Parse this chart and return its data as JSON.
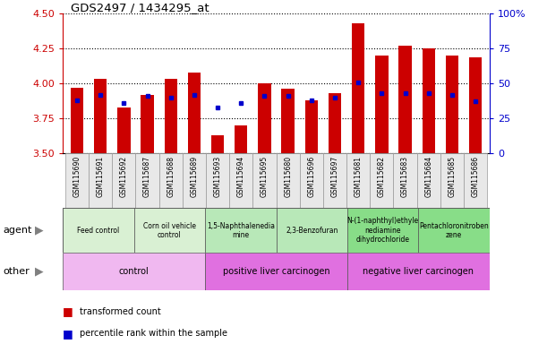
{
  "title": "GDS2497 / 1434295_at",
  "samples": [
    "GSM115690",
    "GSM115691",
    "GSM115692",
    "GSM115687",
    "GSM115688",
    "GSM115689",
    "GSM115693",
    "GSM115694",
    "GSM115695",
    "GSM115680",
    "GSM115696",
    "GSM115697",
    "GSM115681",
    "GSM115682",
    "GSM115683",
    "GSM115684",
    "GSM115685",
    "GSM115686"
  ],
  "red_values": [
    3.97,
    4.03,
    3.83,
    3.92,
    4.03,
    4.08,
    3.63,
    3.7,
    4.0,
    3.96,
    3.88,
    3.93,
    4.43,
    4.2,
    4.27,
    4.25,
    4.2,
    4.19
  ],
  "blue_values": [
    3.88,
    3.92,
    3.86,
    3.91,
    3.9,
    3.92,
    3.83,
    3.86,
    3.91,
    3.91,
    3.88,
    3.9,
    4.01,
    3.93,
    3.93,
    3.93,
    3.92,
    3.87
  ],
  "ylim": [
    3.5,
    4.5
  ],
  "yticks": [
    3.5,
    3.75,
    4.0,
    4.25,
    4.5
  ],
  "right_yticks": [
    0,
    25,
    50,
    75,
    100
  ],
  "agent_groups": [
    {
      "label": "Feed control",
      "start": 0,
      "end": 3,
      "color": "#d9f0d3"
    },
    {
      "label": "Corn oil vehicle\ncontrol",
      "start": 3,
      "end": 6,
      "color": "#d9f0d3"
    },
    {
      "label": "1,5-Naphthalenedia\nmine",
      "start": 6,
      "end": 9,
      "color": "#b8e8b8"
    },
    {
      "label": "2,3-Benzofuran",
      "start": 9,
      "end": 12,
      "color": "#b8e8b8"
    },
    {
      "label": "N-(1-naphthyl)ethyle\nnediamine\ndihydrochloride",
      "start": 12,
      "end": 15,
      "color": "#88dd88"
    },
    {
      "label": "Pentachloronitroben\nzene",
      "start": 15,
      "end": 18,
      "color": "#88dd88"
    }
  ],
  "other_groups": [
    {
      "label": "control",
      "start": 0,
      "end": 6,
      "color": "#f0b8f0"
    },
    {
      "label": "positive liver carcinogen",
      "start": 6,
      "end": 12,
      "color": "#e070e0"
    },
    {
      "label": "negative liver carcinogen",
      "start": 12,
      "end": 18,
      "color": "#e070e0"
    }
  ],
  "bar_color": "#cc0000",
  "dot_color": "#0000cc",
  "bg_color": "#ffffff",
  "label_color_red": "#cc0000",
  "label_color_blue": "#0000cc"
}
